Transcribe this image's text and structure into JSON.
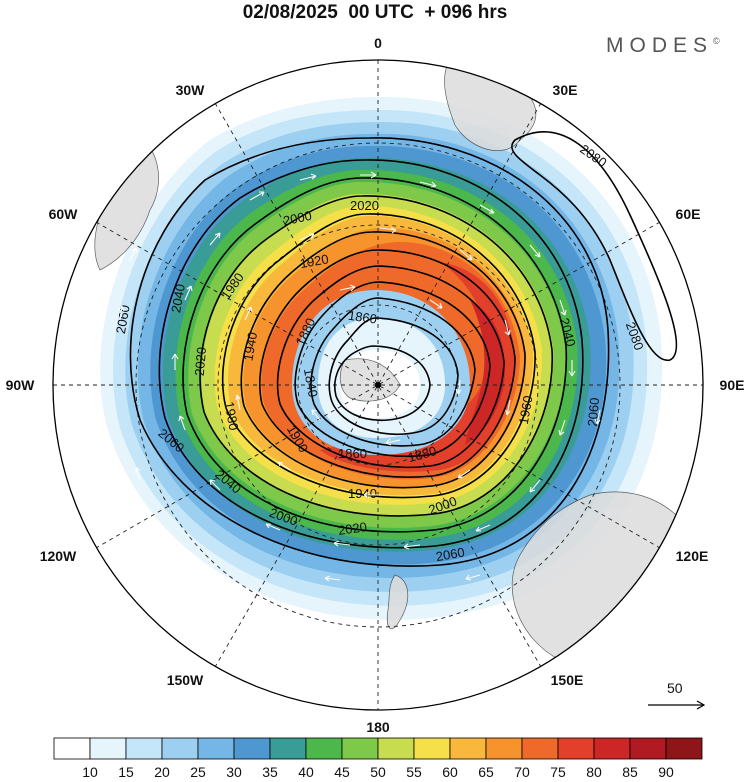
{
  "header": {
    "title": "02/08/2025  00 UTC  + 096 hrs",
    "brand": "MODES",
    "brand_mark": "©"
  },
  "map": {
    "projection": "south-polar-stereographic",
    "longitude_labels": {
      "top": "0",
      "upper_left": "30W",
      "upper_right": "30E",
      "left_upper": "60W",
      "right_upper": "60E",
      "left": "90W",
      "right": "90E",
      "left_lower": "120W",
      "right_lower": "120E",
      "lower_left": "150W",
      "lower_right": "150E",
      "bottom": "180"
    },
    "height_contours": [
      {
        "label": "2080",
        "name": "contour-2080"
      },
      {
        "label": "2060",
        "name": "contour-2060"
      },
      {
        "label": "2040",
        "name": "contour-2040"
      },
      {
        "label": "2020",
        "name": "contour-2020"
      },
      {
        "label": "2000",
        "name": "contour-2000"
      },
      {
        "label": "1980",
        "name": "contour-1980"
      },
      {
        "label": "1960",
        "name": "contour-1960"
      },
      {
        "label": "1940",
        "name": "contour-1940"
      },
      {
        "label": "1920",
        "name": "contour-1920"
      },
      {
        "label": "1900",
        "name": "contour-1900"
      },
      {
        "label": "1880",
        "name": "contour-1880"
      },
      {
        "label": "1860",
        "name": "contour-1860"
      },
      {
        "label": "1840",
        "name": "contour-1840"
      }
    ],
    "reference_vector": {
      "label": "50"
    }
  },
  "colorbar": {
    "ticks": [
      "10",
      "15",
      "20",
      "25",
      "30",
      "35",
      "40",
      "45",
      "50",
      "55",
      "60",
      "65",
      "70",
      "75",
      "80",
      "85",
      "90"
    ],
    "colors": [
      "#ffffff",
      "#e6f4fc",
      "#c5e6f8",
      "#9dd0f0",
      "#74b6e6",
      "#4e97d0",
      "#3a9c96",
      "#4cb84c",
      "#7fc94a",
      "#c8dc50",
      "#f6e04a",
      "#f8b83c",
      "#f6932c",
      "#ef6a2a",
      "#e2402a",
      "#cc2626",
      "#b01a22",
      "#8e1518"
    ]
  }
}
